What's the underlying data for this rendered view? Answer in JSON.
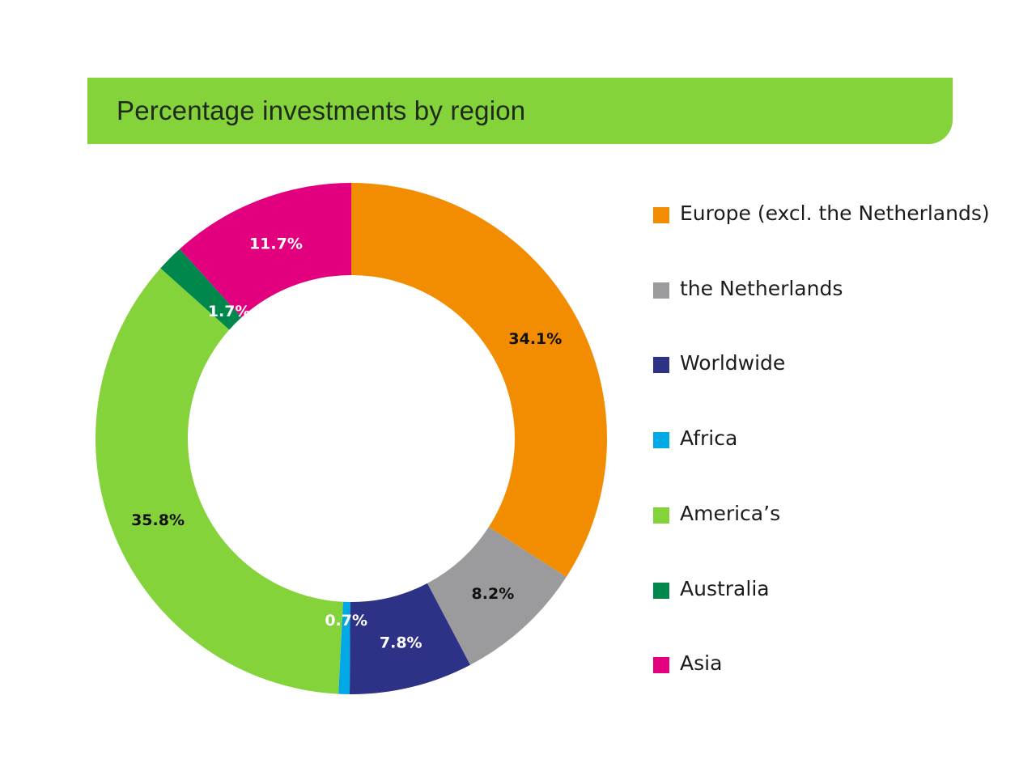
{
  "chart_data": {
    "type": "pie",
    "title": "Percentage investments by region",
    "categories": [
      "Europe (excl. the Netherlands)",
      "the Netherlands",
      "Worldwide",
      "Africa",
      "America’s",
      "Australia",
      "Asia"
    ],
    "values": [
      34.1,
      8.2,
      7.8,
      0.7,
      35.8,
      1.7,
      11.7
    ],
    "labels": [
      "34.1%",
      "8.2%",
      "7.8%",
      "0.7%",
      "35.8%",
      "1.7%",
      "11.7%"
    ],
    "colors": [
      "#f28c00",
      "#9b9b9d",
      "#2e3287",
      "#00a9e6",
      "#84d33a",
      "#00874b",
      "#e2007e"
    ],
    "label_colors": [
      "#111111",
      "#111111",
      "#ffffff",
      "#ffffff",
      "#111111",
      "#ffffff",
      "#ffffff"
    ],
    "donut": true,
    "start_angle": "top, clockwise",
    "legend_position": "right"
  }
}
